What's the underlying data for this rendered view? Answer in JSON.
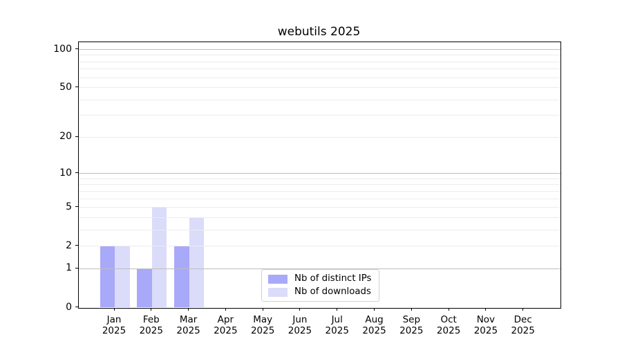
{
  "chart_data": {
    "type": "bar",
    "title": "webutils 2025",
    "categories": [
      "Jan 2025",
      "Feb 2025",
      "Mar 2025",
      "Apr 2025",
      "May 2025",
      "Jun 2025",
      "Jul 2025",
      "Aug 2025",
      "Sep 2025",
      "Oct 2025",
      "Nov 2025",
      "Dec 2025"
    ],
    "month_labels": [
      "Jan",
      "Feb",
      "Mar",
      "Apr",
      "May",
      "Jun",
      "Jul",
      "Aug",
      "Sep",
      "Oct",
      "Nov",
      "Dec"
    ],
    "year_label": "2025",
    "series": [
      {
        "name": "Nb of distinct IPs",
        "color": "#a9a9f9",
        "values": [
          2,
          1,
          2,
          0,
          0,
          0,
          0,
          0,
          0,
          0,
          0,
          0
        ]
      },
      {
        "name": "Nb of downloads",
        "color": "#dbdbfa",
        "values": [
          2,
          5,
          4,
          0,
          0,
          0,
          0,
          0,
          0,
          0,
          0,
          0
        ]
      }
    ],
    "yscale": "log1p",
    "ylim": [
      0,
      114
    ],
    "ytick_values": [
      0,
      1,
      2,
      5,
      10,
      20,
      50,
      100
    ],
    "ytick_labels": [
      "0",
      "1",
      "2",
      "5",
      "10",
      "20",
      "50",
      "100"
    ],
    "major_gridlines": [
      1,
      10,
      100
    ],
    "minor_gridlines": [
      2,
      3,
      4,
      5,
      6,
      7,
      8,
      9,
      20,
      30,
      40,
      50,
      60,
      70,
      80,
      90
    ],
    "grid": true,
    "legend_position": "lower center"
  },
  "colors": {
    "grid_major": "#bdbdbd",
    "grid_minor": "#ececec",
    "axis_frame": "#000000",
    "legend_border": "#d0d0d0",
    "background": "#ffffff"
  }
}
